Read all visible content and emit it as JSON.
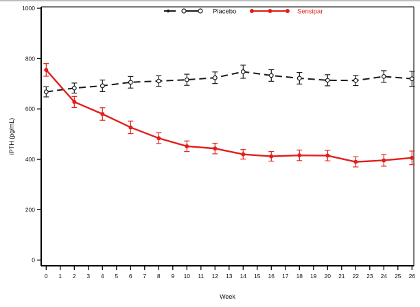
{
  "figure": {
    "background": "#ffffff",
    "frame_color": "#4a4a4a",
    "axis_color": "#000000"
  },
  "chart_data": {
    "type": "line",
    "title": "",
    "xlabel": "Week",
    "ylabel": "iPTH  (pg/mL)",
    "xlim": [
      0,
      26
    ],
    "ylim": [
      0,
      1000
    ],
    "grid": false,
    "legend_position": "top-center-inside",
    "x_ticks": [
      0,
      1,
      2,
      3,
      4,
      5,
      6,
      7,
      8,
      9,
      10,
      11,
      12,
      13,
      14,
      15,
      16,
      17,
      18,
      19,
      20,
      21,
      22,
      23,
      24,
      25,
      26
    ],
    "y_ticks": [
      0,
      200,
      400,
      600,
      800,
      1000
    ],
    "x": [
      0,
      2,
      4,
      6,
      8,
      10,
      12,
      14,
      16,
      18,
      20,
      22,
      24,
      26
    ],
    "series": [
      {
        "name": "Placebo",
        "color": "#1a1a1a",
        "line_style": "dashed",
        "marker": "open-circle",
        "values": [
          668,
          683,
          692,
          706,
          711,
          716,
          724,
          748,
          733,
          722,
          714,
          713,
          729,
          720
        ],
        "errors": [
          20,
          20,
          23,
          23,
          21,
          22,
          23,
          26,
          23,
          23,
          22,
          20,
          23,
          30
        ]
      },
      {
        "name": "Sensipar",
        "color": "#e0201c",
        "line_style": "solid",
        "marker": "filled-circle",
        "values": [
          755,
          628,
          580,
          527,
          484,
          452,
          443,
          420,
          412,
          416,
          415,
          390,
          396,
          406
        ],
        "errors": [
          25,
          22,
          25,
          25,
          22,
          21,
          21,
          19,
          19,
          21,
          21,
          20,
          23,
          27
        ]
      }
    ]
  }
}
